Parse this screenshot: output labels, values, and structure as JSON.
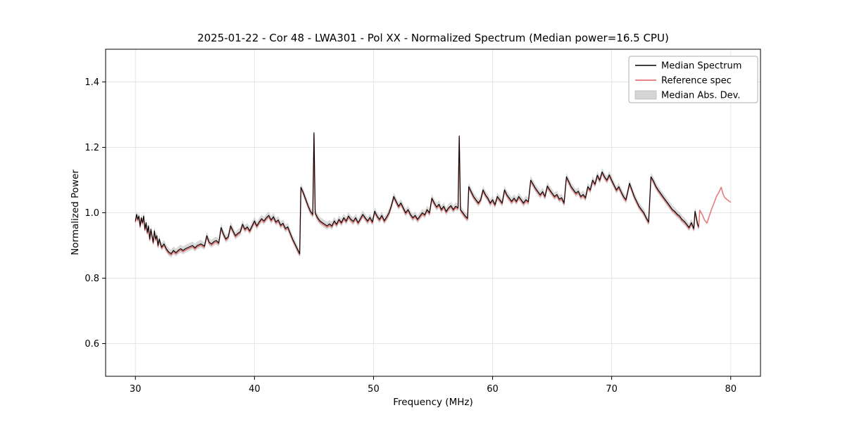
{
  "chart_data": {
    "type": "line",
    "title": "2025-01-22 - Cor 48 - LWA301 - Pol XX - Normalized Spectrum (Median power=16.5 CPU)",
    "xlabel": "Frequency (MHz)",
    "ylabel": "Normalized Power",
    "xlim": [
      27.5,
      82.5
    ],
    "ylim": [
      0.5,
      1.5
    ],
    "xticks": [
      30,
      40,
      50,
      60,
      70,
      80
    ],
    "yticks": [
      0.6,
      0.8,
      1.0,
      1.2,
      1.4
    ],
    "grid": true,
    "grid_color": "#e6e6e6",
    "spine_color": "#000000",
    "legend": {
      "position": "upper right",
      "entries": [
        {
          "label": "Median Spectrum",
          "color": "#000000",
          "type": "line"
        },
        {
          "label": "Reference spec",
          "color": "#d62728",
          "type": "line"
        },
        {
          "label": "Median Abs. Dev.",
          "color": "#d4d4d4",
          "type": "patch"
        }
      ]
    },
    "series": [
      {
        "name": "Median Spectrum",
        "color": "#000000",
        "points": [
          [
            30.0,
            0.975
          ],
          [
            30.1,
            0.995
          ],
          [
            30.2,
            0.98
          ],
          [
            30.3,
            0.99
          ],
          [
            30.4,
            0.96
          ],
          [
            30.5,
            0.985
          ],
          [
            30.6,
            0.97
          ],
          [
            30.7,
            0.99
          ],
          [
            30.8,
            0.95
          ],
          [
            30.9,
            0.97
          ],
          [
            31.0,
            0.94
          ],
          [
            31.1,
            0.96
          ],
          [
            31.2,
            0.92
          ],
          [
            31.3,
            0.95
          ],
          [
            31.4,
            0.93
          ],
          [
            31.5,
            0.91
          ],
          [
            31.6,
            0.945
          ],
          [
            31.7,
            0.92
          ],
          [
            31.8,
            0.93
          ],
          [
            31.9,
            0.9
          ],
          [
            32.0,
            0.92
          ],
          [
            32.2,
            0.895
          ],
          [
            32.4,
            0.905
          ],
          [
            32.6,
            0.89
          ],
          [
            32.8,
            0.88
          ],
          [
            33.0,
            0.875
          ],
          [
            33.2,
            0.885
          ],
          [
            33.4,
            0.878
          ],
          [
            33.6,
            0.885
          ],
          [
            33.8,
            0.89
          ],
          [
            34.0,
            0.885
          ],
          [
            34.2,
            0.89
          ],
          [
            34.5,
            0.895
          ],
          [
            34.8,
            0.9
          ],
          [
            35.0,
            0.893
          ],
          [
            35.2,
            0.9
          ],
          [
            35.5,
            0.905
          ],
          [
            35.8,
            0.898
          ],
          [
            36.0,
            0.93
          ],
          [
            36.2,
            0.91
          ],
          [
            36.4,
            0.905
          ],
          [
            36.6,
            0.912
          ],
          [
            36.8,
            0.915
          ],
          [
            37.0,
            0.908
          ],
          [
            37.2,
            0.955
          ],
          [
            37.4,
            0.935
          ],
          [
            37.6,
            0.92
          ],
          [
            37.8,
            0.927
          ],
          [
            38.0,
            0.96
          ],
          [
            38.2,
            0.945
          ],
          [
            38.4,
            0.93
          ],
          [
            38.6,
            0.937
          ],
          [
            38.8,
            0.942
          ],
          [
            39.0,
            0.965
          ],
          [
            39.2,
            0.95
          ],
          [
            39.4,
            0.957
          ],
          [
            39.6,
            0.945
          ],
          [
            39.8,
            0.96
          ],
          [
            40.0,
            0.975
          ],
          [
            40.2,
            0.96
          ],
          [
            40.4,
            0.972
          ],
          [
            40.6,
            0.982
          ],
          [
            40.8,
            0.975
          ],
          [
            41.0,
            0.985
          ],
          [
            41.2,
            0.992
          ],
          [
            41.4,
            0.978
          ],
          [
            41.6,
            0.988
          ],
          [
            41.8,
            0.972
          ],
          [
            42.0,
            0.978
          ],
          [
            42.2,
            0.962
          ],
          [
            42.4,
            0.968
          ],
          [
            42.6,
            0.952
          ],
          [
            42.8,
            0.957
          ],
          [
            43.0,
            0.938
          ],
          [
            43.2,
            0.92
          ],
          [
            43.4,
            0.905
          ],
          [
            43.6,
            0.89
          ],
          [
            43.8,
            0.875
          ],
          [
            43.9,
            1.078
          ],
          [
            44.1,
            1.062
          ],
          [
            44.3,
            1.042
          ],
          [
            44.5,
            1.022
          ],
          [
            44.7,
            1.005
          ],
          [
            44.9,
            0.995
          ],
          [
            45.0,
            1.245
          ],
          [
            45.1,
            1.0
          ],
          [
            45.3,
            0.985
          ],
          [
            45.5,
            0.975
          ],
          [
            45.7,
            0.97
          ],
          [
            45.9,
            0.965
          ],
          [
            46.1,
            0.96
          ],
          [
            46.3,
            0.966
          ],
          [
            46.5,
            0.96
          ],
          [
            46.7,
            0.975
          ],
          [
            46.9,
            0.965
          ],
          [
            47.1,
            0.98
          ],
          [
            47.3,
            0.97
          ],
          [
            47.5,
            0.985
          ],
          [
            47.7,
            0.975
          ],
          [
            47.9,
            0.99
          ],
          [
            48.1,
            0.98
          ],
          [
            48.3,
            0.974
          ],
          [
            48.5,
            0.985
          ],
          [
            48.7,
            0.97
          ],
          [
            48.9,
            0.982
          ],
          [
            49.1,
            0.995
          ],
          [
            49.3,
            0.985
          ],
          [
            49.5,
            0.975
          ],
          [
            49.7,
            0.986
          ],
          [
            49.9,
            0.972
          ],
          [
            50.1,
            1.005
          ],
          [
            50.3,
            0.99
          ],
          [
            50.5,
            0.98
          ],
          [
            50.7,
            0.992
          ],
          [
            50.9,
            0.976
          ],
          [
            51.1,
            0.987
          ],
          [
            51.3,
            1.0
          ],
          [
            51.5,
            1.022
          ],
          [
            51.7,
            1.05
          ],
          [
            51.9,
            1.035
          ],
          [
            52.1,
            1.02
          ],
          [
            52.3,
            1.03
          ],
          [
            52.5,
            1.015
          ],
          [
            52.7,
            1.0
          ],
          [
            52.9,
            1.01
          ],
          [
            53.1,
            0.995
          ],
          [
            53.3,
            0.985
          ],
          [
            53.5,
            0.992
          ],
          [
            53.7,
            0.98
          ],
          [
            53.9,
            0.99
          ],
          [
            54.1,
            1.0
          ],
          [
            54.3,
            0.994
          ],
          [
            54.5,
            1.01
          ],
          [
            54.7,
            1.0
          ],
          [
            54.9,
            1.045
          ],
          [
            55.1,
            1.03
          ],
          [
            55.3,
            1.018
          ],
          [
            55.5,
            1.026
          ],
          [
            55.7,
            1.01
          ],
          [
            55.9,
            1.02
          ],
          [
            56.1,
            1.004
          ],
          [
            56.3,
            1.015
          ],
          [
            56.5,
            1.022
          ],
          [
            56.7,
            1.01
          ],
          [
            56.9,
            1.02
          ],
          [
            57.1,
            1.015
          ],
          [
            57.2,
            1.235
          ],
          [
            57.3,
            1.01
          ],
          [
            57.5,
            1.0
          ],
          [
            57.7,
            0.99
          ],
          [
            57.9,
            0.983
          ],
          [
            58.0,
            1.08
          ],
          [
            58.2,
            1.065
          ],
          [
            58.4,
            1.05
          ],
          [
            58.6,
            1.04
          ],
          [
            58.8,
            1.03
          ],
          [
            59.0,
            1.04
          ],
          [
            59.2,
            1.07
          ],
          [
            59.4,
            1.055
          ],
          [
            59.6,
            1.045
          ],
          [
            59.8,
            1.03
          ],
          [
            60.0,
            1.04
          ],
          [
            60.2,
            1.025
          ],
          [
            60.4,
            1.05
          ],
          [
            60.6,
            1.04
          ],
          [
            60.8,
            1.03
          ],
          [
            61.0,
            1.07
          ],
          [
            61.2,
            1.055
          ],
          [
            61.4,
            1.045
          ],
          [
            61.6,
            1.035
          ],
          [
            61.8,
            1.045
          ],
          [
            62.0,
            1.035
          ],
          [
            62.2,
            1.05
          ],
          [
            62.4,
            1.04
          ],
          [
            62.6,
            1.03
          ],
          [
            62.8,
            1.04
          ],
          [
            63.0,
            1.034
          ],
          [
            63.2,
            1.1
          ],
          [
            63.4,
            1.088
          ],
          [
            63.6,
            1.075
          ],
          [
            63.8,
            1.065
          ],
          [
            64.0,
            1.055
          ],
          [
            64.2,
            1.065
          ],
          [
            64.4,
            1.05
          ],
          [
            64.6,
            1.082
          ],
          [
            64.8,
            1.07
          ],
          [
            65.0,
            1.06
          ],
          [
            65.2,
            1.05
          ],
          [
            65.4,
            1.056
          ],
          [
            65.6,
            1.042
          ],
          [
            65.8,
            1.046
          ],
          [
            66.0,
            1.03
          ],
          [
            66.2,
            1.11
          ],
          [
            66.4,
            1.095
          ],
          [
            66.6,
            1.08
          ],
          [
            66.8,
            1.07
          ],
          [
            67.0,
            1.06
          ],
          [
            67.2,
            1.066
          ],
          [
            67.4,
            1.05
          ],
          [
            67.6,
            1.056
          ],
          [
            67.8,
            1.046
          ],
          [
            68.0,
            1.08
          ],
          [
            68.2,
            1.07
          ],
          [
            68.4,
            1.1
          ],
          [
            68.6,
            1.088
          ],
          [
            68.8,
            1.115
          ],
          [
            69.0,
            1.1
          ],
          [
            69.2,
            1.125
          ],
          [
            69.4,
            1.11
          ],
          [
            69.6,
            1.1
          ],
          [
            69.8,
            1.116
          ],
          [
            70.0,
            1.1
          ],
          [
            70.2,
            1.085
          ],
          [
            70.4,
            1.07
          ],
          [
            70.6,
            1.08
          ],
          [
            70.8,
            1.064
          ],
          [
            71.0,
            1.05
          ],
          [
            71.2,
            1.04
          ],
          [
            71.5,
            1.09
          ],
          [
            71.7,
            1.07
          ],
          [
            71.9,
            1.05
          ],
          [
            72.1,
            1.035
          ],
          [
            72.3,
            1.02
          ],
          [
            72.5,
            1.01
          ],
          [
            72.7,
            1.0
          ],
          [
            72.9,
            0.985
          ],
          [
            73.1,
            0.972
          ],
          [
            73.3,
            1.11
          ],
          [
            73.5,
            1.098
          ],
          [
            73.7,
            1.082
          ],
          [
            73.9,
            1.07
          ],
          [
            74.1,
            1.06
          ],
          [
            74.3,
            1.05
          ],
          [
            74.5,
            1.04
          ],
          [
            74.7,
            1.03
          ],
          [
            74.9,
            1.02
          ],
          [
            75.1,
            1.01
          ],
          [
            75.3,
            1.004
          ],
          [
            75.5,
            0.996
          ],
          [
            75.7,
            0.99
          ],
          [
            75.9,
            0.98
          ],
          [
            76.1,
            0.974
          ],
          [
            76.3,
            0.965
          ],
          [
            76.5,
            0.955
          ],
          [
            76.7,
            0.97
          ],
          [
            76.9,
            0.952
          ],
          [
            77.0,
            1.005
          ],
          [
            77.1,
            0.988
          ],
          [
            77.2,
            0.968
          ],
          [
            77.3,
            0.958
          ]
        ]
      },
      {
        "name": "Reference spec",
        "color": "#d62728",
        "opacity": 0.6,
        "follows": "Median Spectrum",
        "offset": -0.004,
        "note": "overlaps median spectrum closely over 30-77.3 MHz, then continues alone to 80 MHz",
        "tail_points": [
          [
            77.4,
            1.008
          ],
          [
            77.6,
            0.995
          ],
          [
            77.8,
            0.978
          ],
          [
            78.0,
            0.968
          ],
          [
            78.2,
            0.99
          ],
          [
            78.4,
            1.012
          ],
          [
            78.6,
            1.03
          ],
          [
            78.8,
            1.05
          ],
          [
            79.0,
            1.062
          ],
          [
            79.2,
            1.078
          ],
          [
            79.35,
            1.058
          ],
          [
            79.5,
            1.046
          ],
          [
            79.7,
            1.04
          ],
          [
            80.0,
            1.032
          ]
        ]
      },
      {
        "name": "Median Abs. Dev.",
        "type": "band",
        "around": "Median Spectrum",
        "band_halfwidth": 0.012,
        "color": "#aaaaaa",
        "opacity": 0.45
      }
    ]
  }
}
